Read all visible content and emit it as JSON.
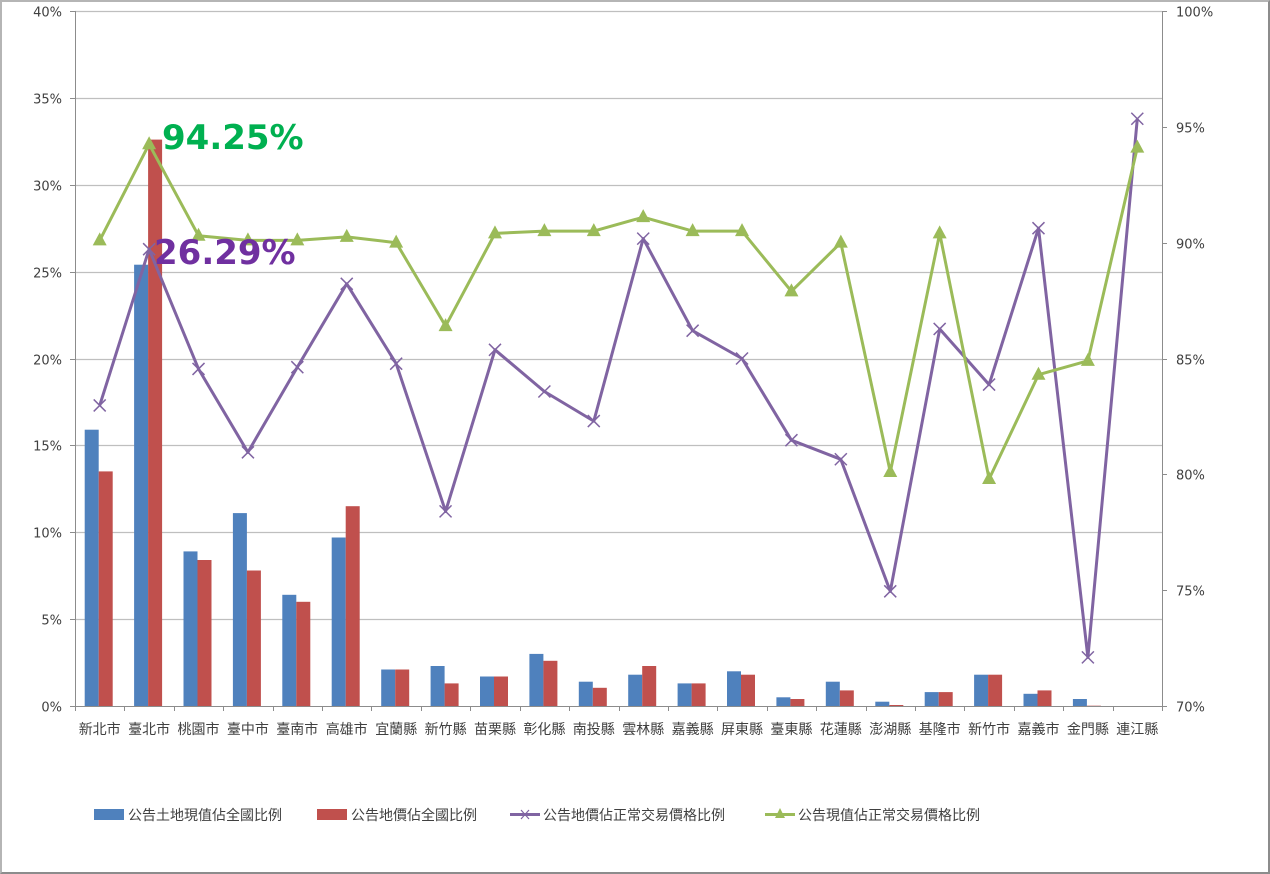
{
  "chart_data": {
    "type": "bar+line",
    "title": "",
    "categories": [
      "新北市",
      "臺北市",
      "桃園市",
      "臺中市",
      "臺南市",
      "高雄市",
      "宜蘭縣",
      "新竹縣",
      "苗栗縣",
      "彰化縣",
      "南投縣",
      "雲林縣",
      "嘉義縣",
      "屏東縣",
      "臺東縣",
      "花蓮縣",
      "澎湖縣",
      "基隆市",
      "新竹市",
      "嘉義市",
      "金門縣",
      "連江縣"
    ],
    "series": [
      {
        "name": "公告土地現值佔全國比例",
        "type": "bar",
        "axis": "left",
        "color": "#4F81BD",
        "values": [
          15.9,
          25.4,
          8.9,
          11.1,
          6.4,
          9.7,
          2.1,
          2.3,
          1.7,
          3.0,
          1.4,
          1.8,
          1.3,
          2.0,
          0.5,
          1.4,
          0.25,
          0.8,
          1.8,
          0.7,
          0.4,
          0.0
        ]
      },
      {
        "name": "公告地價佔全國比例",
        "type": "bar",
        "axis": "left",
        "color": "#C0504D",
        "values": [
          13.5,
          32.6,
          8.4,
          7.8,
          6.0,
          11.5,
          2.1,
          1.3,
          1.7,
          2.6,
          1.05,
          2.3,
          1.3,
          1.8,
          0.4,
          0.9,
          0.06,
          0.8,
          1.8,
          0.9,
          0.02,
          0.0
        ]
      },
      {
        "name": "公告地價佔正常交易價格比例",
        "type": "line",
        "marker": "x",
        "axis": "left",
        "color": "#8064A2",
        "values": [
          17.3,
          26.29,
          19.4,
          14.6,
          19.5,
          24.3,
          19.7,
          11.2,
          20.5,
          18.1,
          16.4,
          26.9,
          21.6,
          20.0,
          15.3,
          14.2,
          6.6,
          21.7,
          18.5,
          27.5,
          2.8,
          33.8
        ]
      },
      {
        "name": "公告現值佔正常交易價格比例",
        "type": "line",
        "marker": "triangle",
        "axis": "right",
        "color": "#9BBB59",
        "values": [
          90.1,
          94.25,
          90.3,
          90.1,
          90.1,
          90.25,
          90.0,
          86.4,
          90.4,
          90.5,
          90.5,
          91.1,
          90.5,
          90.5,
          87.9,
          90.0,
          80.1,
          90.4,
          79.8,
          84.3,
          84.9,
          94.1
        ]
      }
    ],
    "left_axis": {
      "min": 0,
      "max": 40,
      "step": 5,
      "ticks": [
        "0%",
        "5%",
        "10%",
        "15%",
        "20%",
        "25%",
        "30%",
        "35%",
        "40%"
      ]
    },
    "right_axis": {
      "min": 70,
      "max": 100,
      "step": 5,
      "ticks": [
        "70%",
        "75%",
        "80%",
        "85%",
        "90%",
        "95%",
        "100%"
      ]
    },
    "xlabel": "",
    "ylabel": "",
    "grid": true,
    "legend_position": "bottom",
    "annotations": [
      {
        "text": "94.25%",
        "category": "臺北市",
        "series": "公告現值佔正常交易價格比例",
        "color": "#00B050"
      },
      {
        "text": "26.29%",
        "category": "臺北市",
        "series": "公告地價佔正常交易價格比例",
        "color": "#7030A0"
      }
    ]
  },
  "legend": [
    {
      "label": "公告土地現值佔全國比例",
      "kind": "bar",
      "color": "#4F81BD"
    },
    {
      "label": "公告地價佔全國比例",
      "kind": "bar",
      "color": "#C0504D"
    },
    {
      "label": "公告地價佔正常交易價格比例",
      "kind": "line-x",
      "color": "#8064A2"
    },
    {
      "label": "公告現值佔正常交易價格比例",
      "kind": "line-triangle",
      "color": "#9BBB59"
    }
  ],
  "colors": {
    "grid": "#BFBFBF",
    "axis": "#8C8C8C",
    "text": "#404040"
  }
}
